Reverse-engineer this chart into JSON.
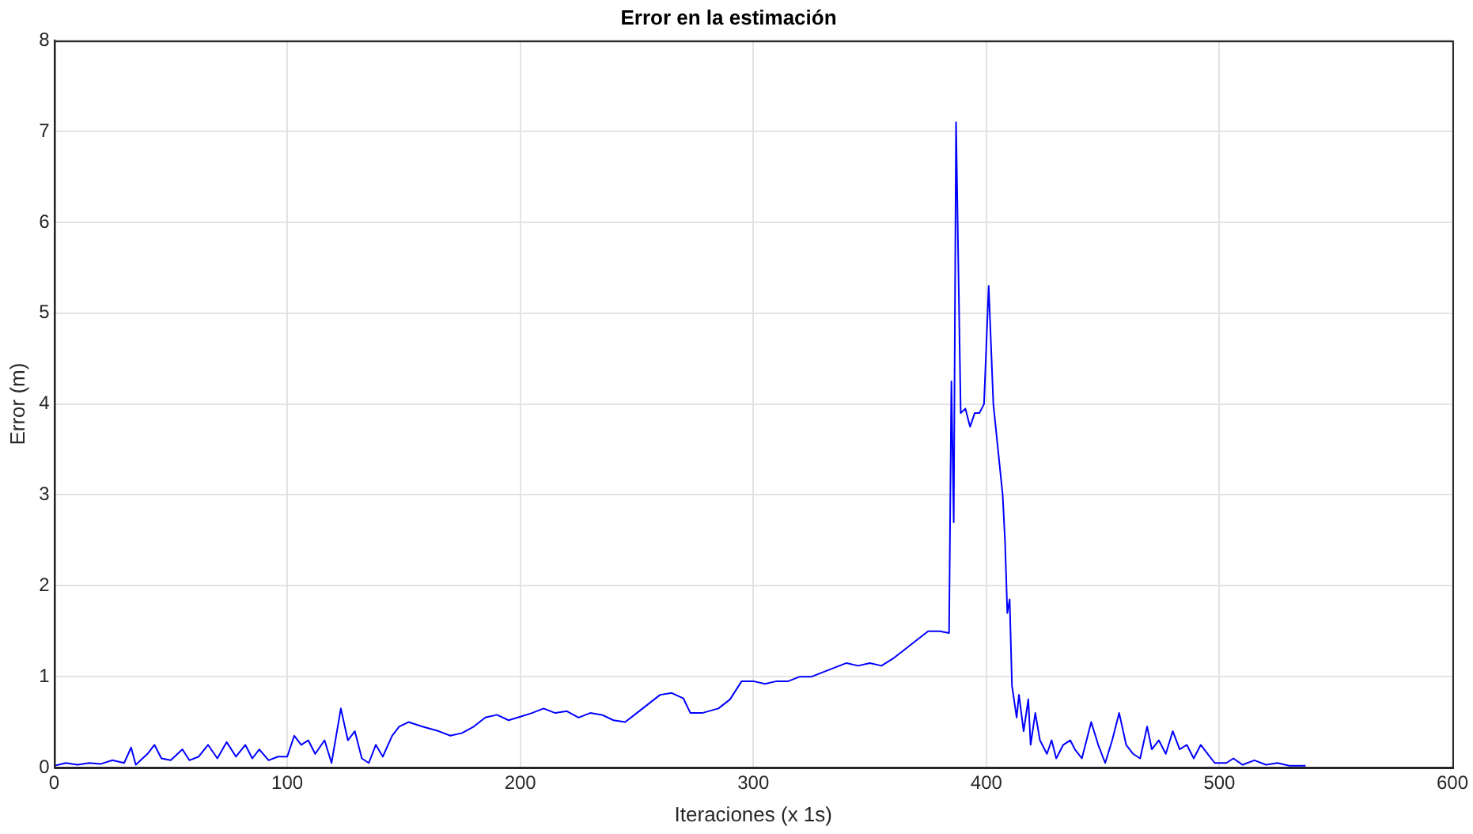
{
  "chart_data": {
    "type": "line",
    "title": "Error en la estimación",
    "xlabel": "Iteraciones (x 1s)",
    "ylabel": "Error (m)",
    "xlim": [
      0,
      600
    ],
    "xticks": [
      0,
      100,
      200,
      300,
      400,
      500,
      600
    ],
    "ylim": [
      0,
      8
    ],
    "yticks": [
      0,
      1,
      2,
      3,
      4,
      5,
      6,
      7,
      8
    ],
    "grid": true,
    "legend": false,
    "marker": "none",
    "line_style": "solid",
    "series": [
      {
        "color": "#0000ff",
        "x": [
          0,
          5,
          10,
          15,
          20,
          25,
          30,
          33,
          35,
          40,
          43,
          46,
          50,
          55,
          58,
          62,
          66,
          70,
          74,
          78,
          82,
          85,
          88,
          92,
          96,
          100,
          103,
          106,
          109,
          112,
          116,
          119,
          123,
          126,
          129,
          132,
          135,
          138,
          141,
          145,
          148,
          152,
          158,
          165,
          170,
          175,
          180,
          185,
          190,
          195,
          200,
          205,
          210,
          215,
          220,
          225,
          230,
          235,
          240,
          245,
          250,
          255,
          260,
          265,
          270,
          273,
          278,
          285,
          290,
          295,
          300,
          305,
          310,
          315,
          320,
          325,
          330,
          335,
          340,
          345,
          350,
          355,
          360,
          365,
          370,
          375,
          380,
          384,
          385,
          386,
          387,
          389,
          391,
          393,
          395,
          397,
          399,
          401,
          403,
          405,
          407,
          408,
          409,
          410,
          411,
          413,
          414,
          416,
          418,
          419,
          421,
          423,
          426,
          428,
          430,
          433,
          436,
          438,
          441,
          445,
          448,
          451,
          454,
          457,
          460,
          463,
          466,
          469,
          471,
          474,
          477,
          480,
          483,
          486,
          489,
          492,
          495,
          498,
          503,
          506,
          510,
          515,
          520,
          525,
          530,
          537
        ],
        "values": [
          0.02,
          0.05,
          0.03,
          0.05,
          0.04,
          0.08,
          0.05,
          0.22,
          0.03,
          0.15,
          0.25,
          0.1,
          0.08,
          0.2,
          0.08,
          0.12,
          0.25,
          0.1,
          0.28,
          0.12,
          0.25,
          0.1,
          0.2,
          0.08,
          0.12,
          0.12,
          0.35,
          0.25,
          0.3,
          0.15,
          0.3,
          0.05,
          0.65,
          0.3,
          0.4,
          0.1,
          0.05,
          0.25,
          0.12,
          0.35,
          0.45,
          0.5,
          0.45,
          0.4,
          0.35,
          0.38,
          0.45,
          0.55,
          0.58,
          0.52,
          0.56,
          0.6,
          0.65,
          0.6,
          0.62,
          0.55,
          0.6,
          0.58,
          0.52,
          0.5,
          0.6,
          0.7,
          0.8,
          0.82,
          0.76,
          0.6,
          0.6,
          0.65,
          0.75,
          0.95,
          0.95,
          0.92,
          0.95,
          0.95,
          1.0,
          1.0,
          1.05,
          1.1,
          1.15,
          1.12,
          1.15,
          1.12,
          1.2,
          1.3,
          1.4,
          1.5,
          1.5,
          1.48,
          4.25,
          2.7,
          7.1,
          3.9,
          3.95,
          3.75,
          3.9,
          3.9,
          4.0,
          5.3,
          4.0,
          3.5,
          3.0,
          2.5,
          1.7,
          1.85,
          0.9,
          0.55,
          0.8,
          0.4,
          0.75,
          0.25,
          0.6,
          0.3,
          0.15,
          0.3,
          0.1,
          0.25,
          0.3,
          0.2,
          0.1,
          0.5,
          0.25,
          0.05,
          0.3,
          0.6,
          0.25,
          0.15,
          0.1,
          0.45,
          0.2,
          0.3,
          0.15,
          0.4,
          0.2,
          0.25,
          0.1,
          0.25,
          0.15,
          0.05,
          0.05,
          0.1,
          0.03,
          0.08,
          0.03,
          0.05,
          0.02,
          0.02
        ]
      }
    ]
  }
}
